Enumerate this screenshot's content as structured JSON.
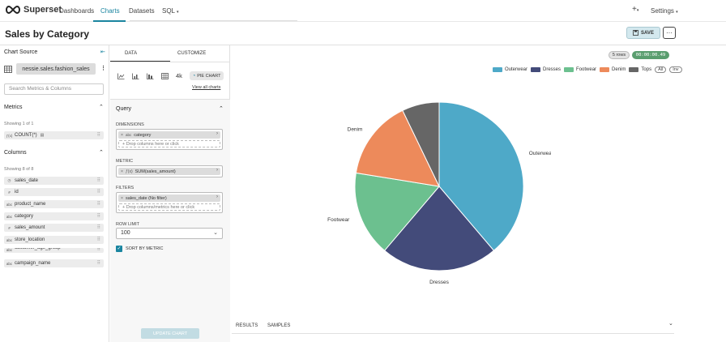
{
  "app": {
    "brand": "Superset",
    "nav": [
      "Dashboards",
      "Charts",
      "Datasets",
      "SQL"
    ],
    "plus_label": "+",
    "settings_label": "Settings"
  },
  "header": {
    "title": "Sales by Category",
    "save_label": "SAVE",
    "more_label": "···"
  },
  "chart_source": {
    "title": "Chart Source",
    "dataset": "nessie.sales.fashion_sales",
    "search_placeholder": "Search Metrics & Columns",
    "metrics_title": "Metrics",
    "metrics_showing": "Showing 1 of 1",
    "metrics": [
      {
        "type": "ƒ(x)",
        "name": "COUNT(*)"
      }
    ],
    "columns_title": "Columns",
    "columns_showing": "Showing 8 of 8",
    "columns": [
      {
        "type": "◷",
        "name": "sales_date"
      },
      {
        "type": "#",
        "name": "id"
      },
      {
        "type": "abc",
        "name": "product_name"
      },
      {
        "type": "abc",
        "name": "category"
      },
      {
        "type": "#",
        "name": "sales_amount"
      },
      {
        "type": "abc",
        "name": "store_location"
      },
      {
        "type": "abc",
        "name": "customer_age_group"
      },
      {
        "type": "abc",
        "name": "campaign_name"
      }
    ]
  },
  "config": {
    "tab_data": "DATA",
    "tab_customize": "CUSTOMIZE",
    "viz_4k": "4k",
    "viz_selected": "PIE CHART",
    "view_all": "View all charts",
    "query_title": "Query",
    "dimensions_label": "DIMENSIONS",
    "dimension_chip": "category",
    "dimension_chip_type": "abc",
    "dimension_drop": "Drop columns here or click",
    "metric_label": "METRIC",
    "metric_chip": "SUM(sales_amount)",
    "metric_chip_type": "ƒ(x)",
    "filters_label": "FILTERS",
    "filter_chip": "sales_date (No filter)",
    "filter_drop": "Drop columns/metrics here or click",
    "row_limit_label": "ROW LIMIT",
    "row_limit_value": "100",
    "sort_label": "SORT BY METRIC",
    "update_label": "UPDATE CHART"
  },
  "result": {
    "rows": "5 rows",
    "elapsed": "00:00:00.49",
    "legend_all": "All",
    "legend_inv": "Inv",
    "tab_results": "RESULTS",
    "tab_samples": "SAMPLES"
  },
  "chart_data": {
    "type": "pie",
    "categories": [
      "Outerwear",
      "Dresses",
      "Footwear",
      "Denim",
      "Tops"
    ],
    "values": [
      38,
      22,
      16,
      15,
      7
    ],
    "colors": [
      "#4ea9c8",
      "#434b7a",
      "#6cc08f",
      "#ed8a5b",
      "#666666"
    ],
    "legend_position": "top-right"
  }
}
